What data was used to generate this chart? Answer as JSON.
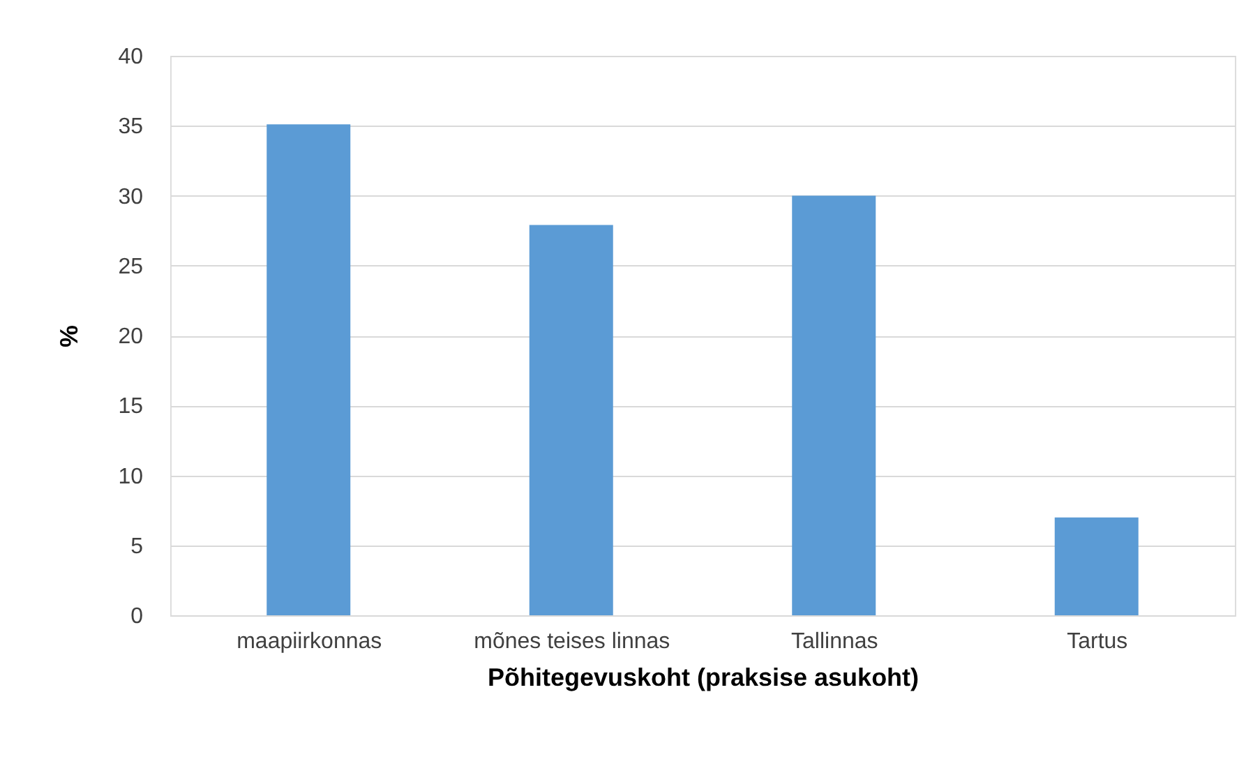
{
  "chart_data": {
    "type": "bar",
    "xlabel": "Põhitegevuskoht (praksise asukoht)",
    "ylabel": "%",
    "categories": [
      "maapiirkonnas",
      "mõnes teises linnas",
      "Tallinnas",
      "Tartus"
    ],
    "values": [
      35.1,
      27.9,
      30,
      7
    ],
    "color": "#5b9bd5",
    "ylim": [
      0,
      40
    ],
    "yticks": [
      0,
      5,
      10,
      15,
      20,
      25,
      30,
      35,
      40
    ],
    "grid": "y"
  }
}
